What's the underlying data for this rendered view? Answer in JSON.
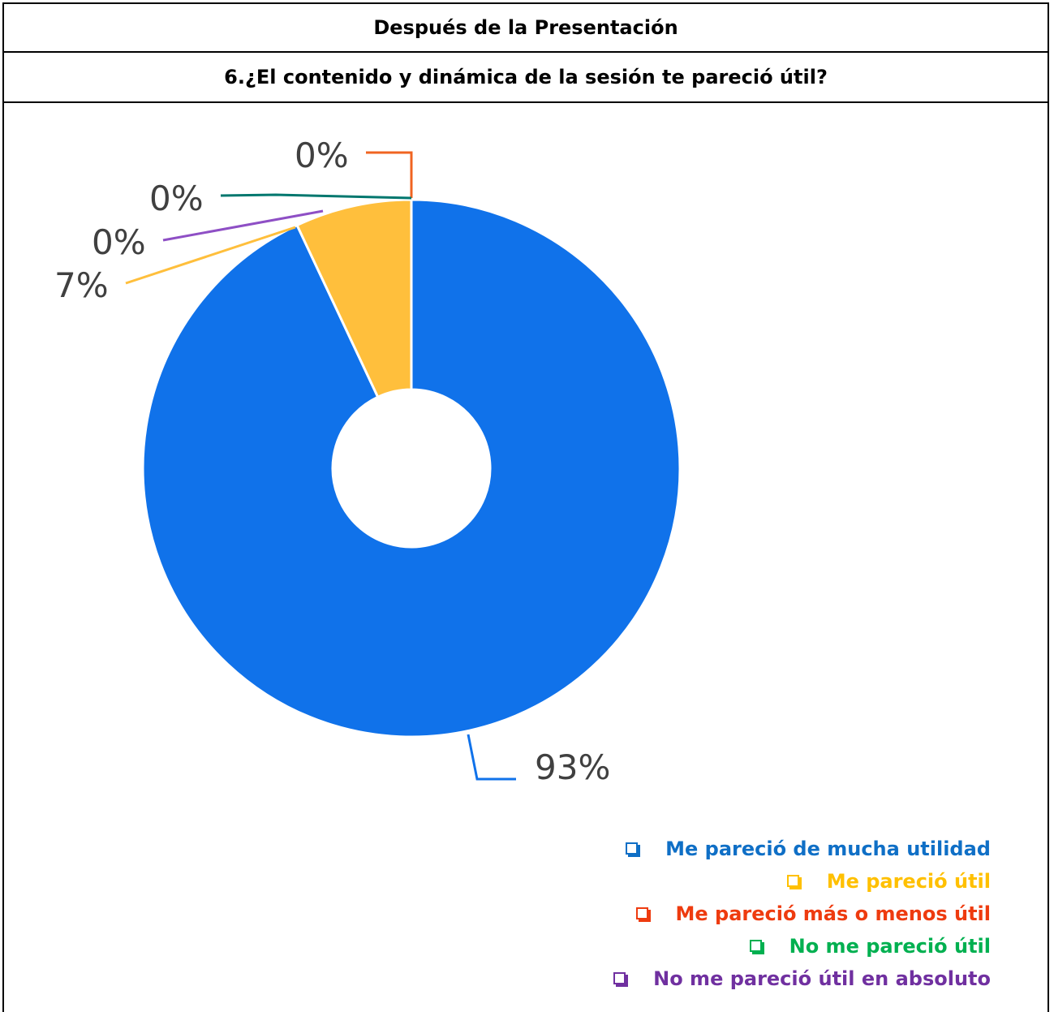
{
  "header": {
    "title": "Después de la Presentación",
    "question": "6.¿El contenido y dinámica de la sesión te pareció útil?"
  },
  "chart_data": {
    "type": "pie",
    "title": "",
    "series": [
      {
        "name": "Me pareció de mucha utilidad",
        "value": 93,
        "label": "93%",
        "color": "#1072EA"
      },
      {
        "name": "Me pareció útil",
        "value": 7,
        "label": "7%",
        "color": "#FFBF3C"
      },
      {
        "name": "Me pareció más o menos útil",
        "value": 0,
        "label": "0%",
        "color": "#F06421"
      },
      {
        "name": "No me pareció útil",
        "value": 0,
        "label": "0%",
        "color": "#00776E"
      },
      {
        "name": "No me pareció útil en absoluto",
        "value": 0,
        "label": "0%",
        "color": "#8E4FC5"
      }
    ],
    "legend": {
      "position": "bottom-right",
      "items": [
        {
          "label": "Me pareció de mucha utilidad",
          "color": "#0F6FC6"
        },
        {
          "label": "Me pareció útil",
          "color": "#FFC000"
        },
        {
          "label": "Me pareció más o menos útil",
          "color": "#EE3B0F"
        },
        {
          "label": "No me pareció útil",
          "color": "#00B050"
        },
        {
          "label": "No me pareció útil en absoluto",
          "color": "#7030A0"
        }
      ]
    }
  }
}
